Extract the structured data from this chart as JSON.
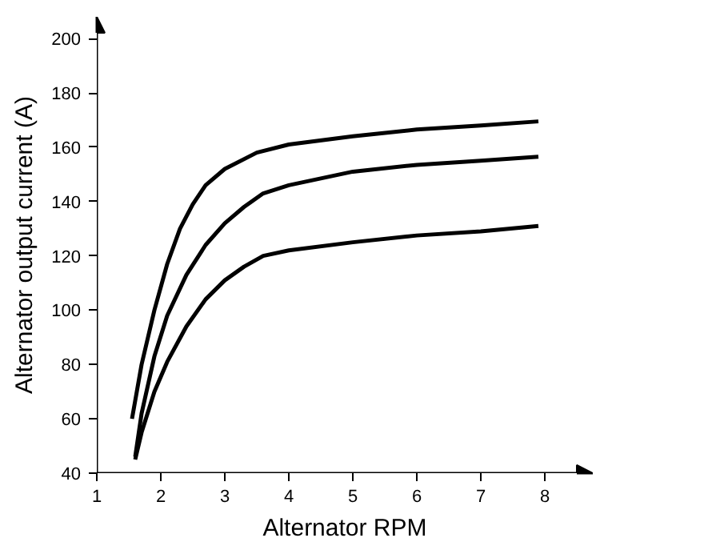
{
  "chart_data": {
    "type": "line",
    "xlabel": "Alternator RPM",
    "ylabel": "Alternator output current (A)",
    "xlim": [
      1,
      8.75
    ],
    "ylim": [
      40,
      208
    ],
    "xticks": [
      1,
      2,
      3,
      4,
      5,
      6,
      7,
      8
    ],
    "yticks": [
      40,
      60,
      80,
      100,
      120,
      140,
      160,
      180,
      200
    ],
    "grid": false,
    "marker": "none",
    "line_style": "solid",
    "series": [
      {
        "color": "#000000",
        "x": [
          1.55,
          1.7,
          1.9,
          2.1,
          2.3,
          2.5,
          2.7,
          3.0,
          3.5,
          4,
          5,
          6,
          7,
          7.9
        ],
        "values": [
          60,
          80,
          100,
          117,
          130,
          139,
          146,
          152,
          158,
          161,
          164,
          166.5,
          168,
          169.5
        ]
      },
      {
        "color": "#000000",
        "x": [
          1.6,
          1.7,
          1.9,
          2.1,
          2.4,
          2.7,
          3.0,
          3.3,
          3.6,
          4,
          5,
          6,
          7,
          7.9
        ],
        "values": [
          46,
          62,
          83,
          98,
          113,
          124,
          132,
          138,
          143,
          146,
          151,
          153.5,
          155,
          156.5
        ]
      },
      {
        "color": "#000000",
        "x": [
          1.6,
          1.7,
          1.9,
          2.1,
          2.4,
          2.7,
          3.0,
          3.3,
          3.6,
          4,
          5,
          6,
          7,
          7.9
        ],
        "values": [
          45,
          55,
          70,
          81,
          94,
          104,
          111,
          116,
          120,
          122,
          125,
          127.5,
          129,
          131
        ]
      }
    ]
  }
}
